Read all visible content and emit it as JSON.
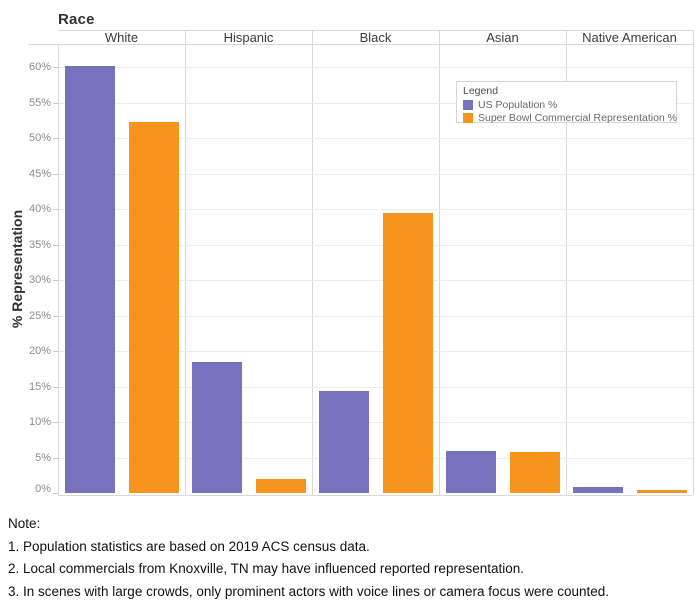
{
  "chart": {
    "title": "Race",
    "ylabel": "% Representation"
  },
  "legend": {
    "title": "Legend"
  },
  "notes": [
    "Note:",
    "1. Population statistics are based on 2019 ACS census data.",
    "2. Local commercials from Knoxville, TN may have influenced reported representation.",
    "3. In scenes with large crowds, only prominent actors with voice lines or camera focus were counted."
  ],
  "chart_data": {
    "type": "bar",
    "title": "Race",
    "xlabel": "Race",
    "ylabel": "% Representation",
    "categories": [
      "White",
      "Hispanic",
      "Black",
      "Asian",
      "Native American"
    ],
    "series": [
      {
        "name": "US Population %",
        "color": "#7672BE",
        "values": [
          60.1,
          18.5,
          14.3,
          5.9,
          0.8
        ]
      },
      {
        "name": "Super Bowl Commercial Representation %",
        "color": "#F7941E",
        "values": [
          52.2,
          2.0,
          39.4,
          5.8,
          0.4
        ]
      }
    ],
    "ylim": [
      0,
      63
    ],
    "ytick_step": 5,
    "ytick_max": 60,
    "ytick_format": "percent",
    "grid": true,
    "legend_position": "inside-top-right"
  }
}
